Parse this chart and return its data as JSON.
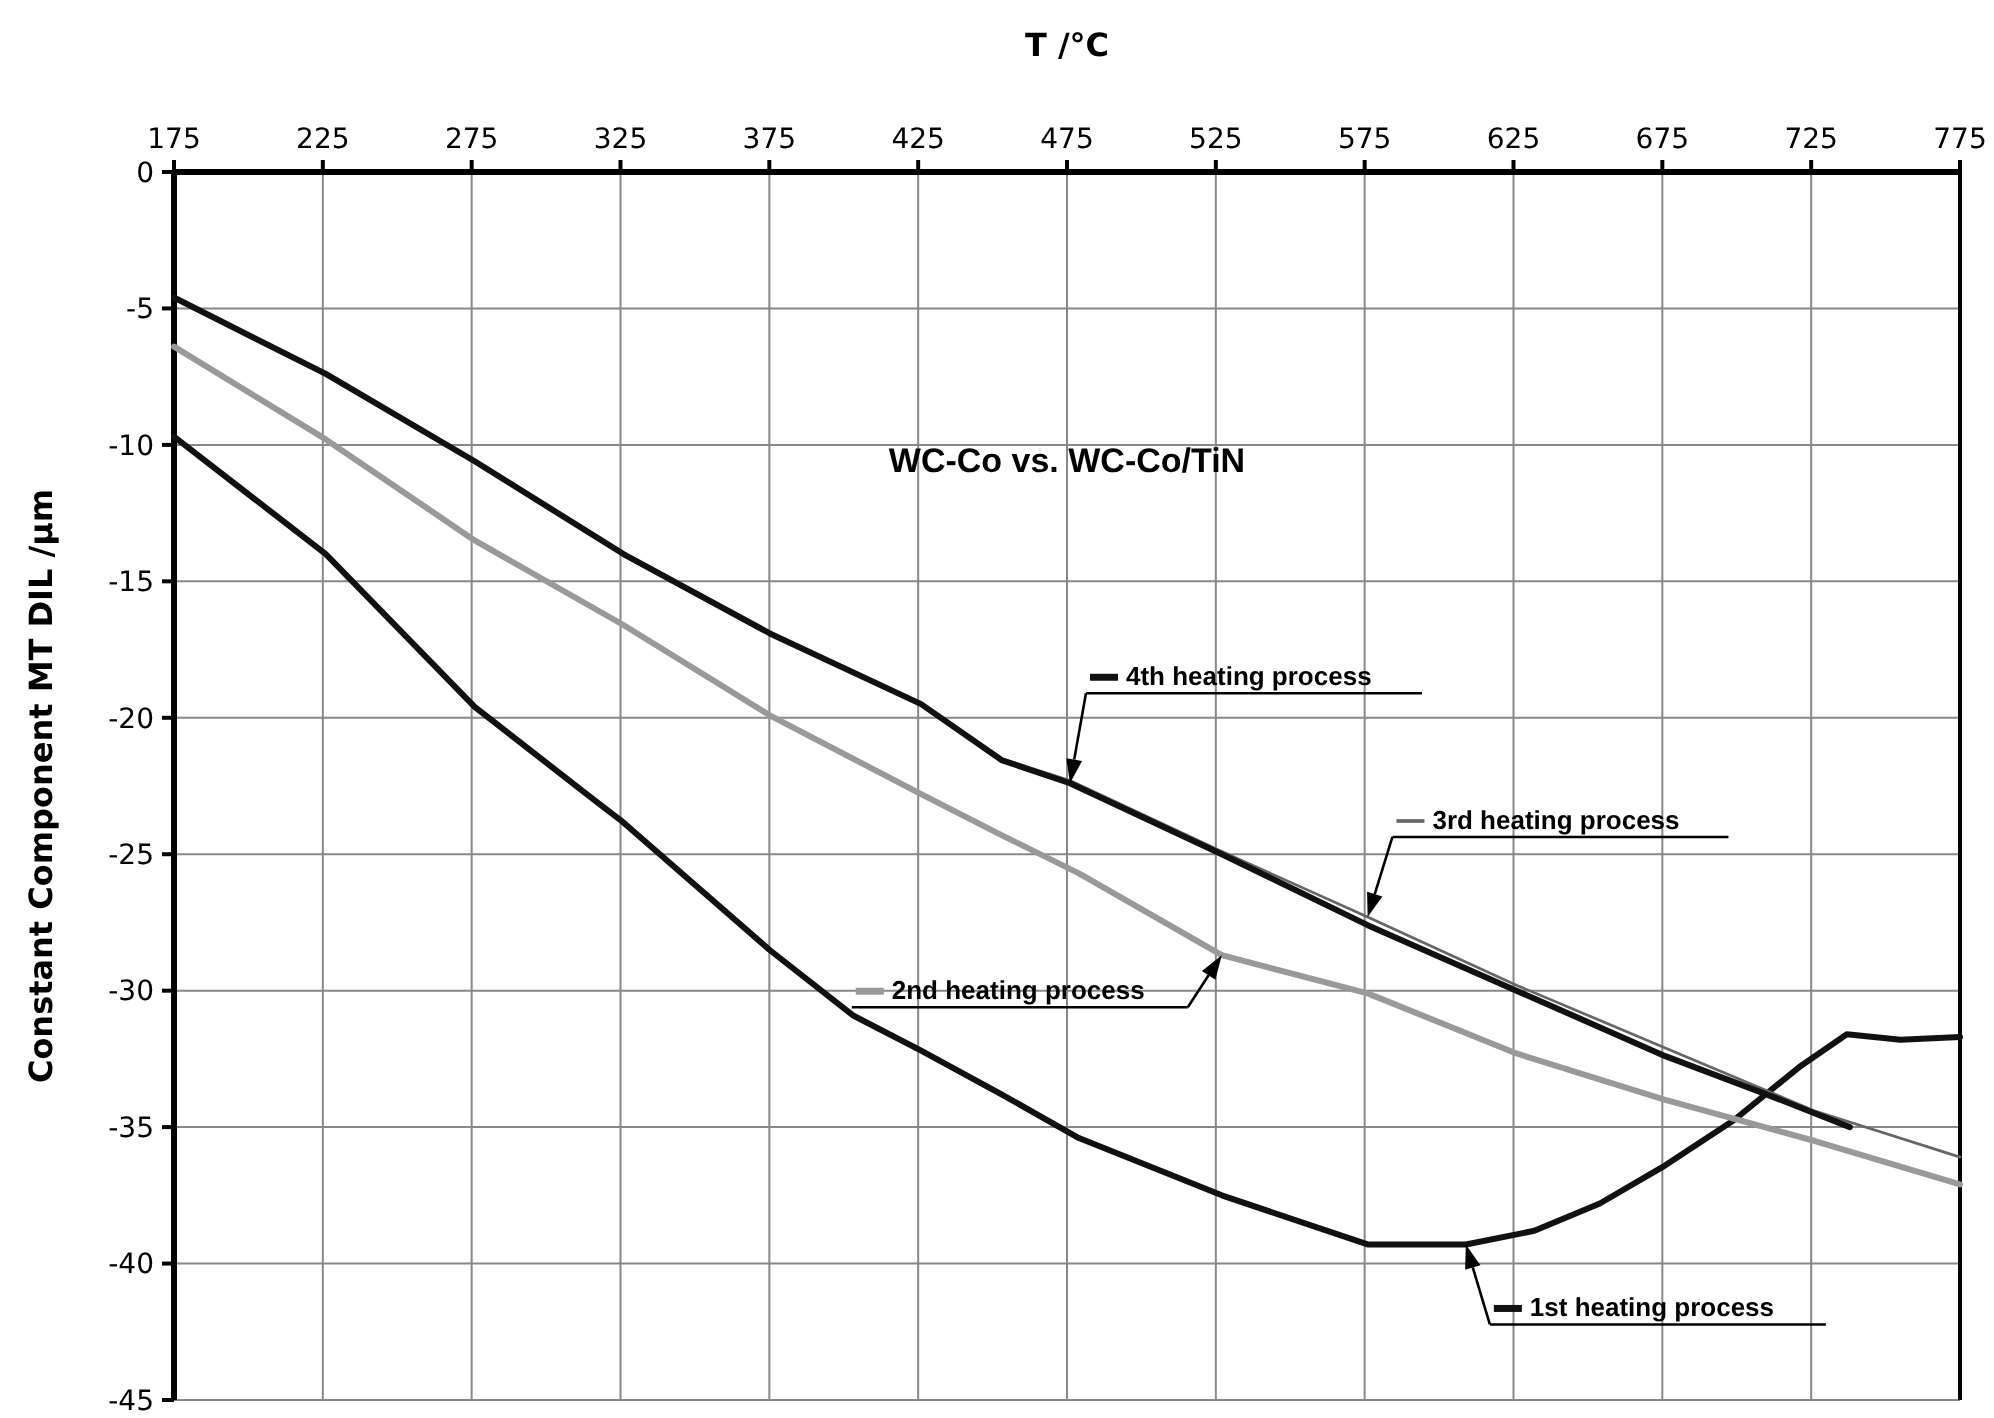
{
  "chart_data": {
    "type": "line",
    "title": "WC-Co vs. WC-Co/TiN",
    "xlabel": "T /°C",
    "ylabel": "Constant Component MT DIL /μm",
    "xlim": [
      175,
      775
    ],
    "xticks": [
      175,
      225,
      275,
      325,
      375,
      425,
      475,
      525,
      575,
      625,
      675,
      725,
      775
    ],
    "ylim": [
      -45,
      0
    ],
    "yticks": [
      0,
      -5,
      -10,
      -15,
      -20,
      -25,
      -30,
      -35,
      -40,
      -45
    ],
    "grid": true,
    "legend": "bottom right",
    "marker": "none",
    "line_style": "solid",
    "series": [
      {
        "name": "1st heating process",
        "color": "#111111",
        "x": [
          175,
          226,
          276,
          316,
          325,
          375,
          403,
          426,
          453,
          479,
          527,
          576,
          609,
          632,
          654,
          676,
          699,
          721,
          737,
          755,
          775
        ],
        "values": [
          -9.7,
          -14.0,
          -19.6,
          -23.0,
          -23.75,
          -28.5,
          -30.9,
          -32.2,
          -33.8,
          -35.4,
          -37.5,
          -39.3,
          -39.3,
          -38.8,
          -37.8,
          -36.4,
          -34.75,
          -32.8,
          -31.6,
          -31.8,
          -31.7
        ]
      },
      {
        "name": "2nd heating process",
        "color": "#999999",
        "x": [
          175,
          226,
          276,
          326,
          375,
          426,
          453,
          479,
          527,
          576,
          626,
          676,
          726,
          775
        ],
        "values": [
          -6.4,
          -9.8,
          -13.5,
          -16.6,
          -19.9,
          -22.8,
          -24.3,
          -25.7,
          -28.7,
          -30.1,
          -32.3,
          -34.0,
          -35.5,
          -37.1
        ]
      },
      {
        "name": "3rd heating process",
        "color": "#666666",
        "x": [
          175,
          226,
          276,
          326,
          375,
          426,
          453,
          476,
          527,
          576,
          626,
          676,
          726,
          775
        ],
        "values": [
          -4.6,
          -7.4,
          -10.6,
          -14.0,
          -16.9,
          -19.5,
          -21.5,
          -22.3,
          -24.9,
          -27.3,
          -29.8,
          -32.1,
          -34.4,
          -36.1
        ]
      },
      {
        "name": "4th heating process",
        "color": "#111111",
        "x": [
          175,
          226,
          276,
          326,
          375,
          426,
          453,
          476,
          527,
          576,
          626,
          676,
          710,
          738
        ],
        "values": [
          -4.6,
          -7.4,
          -10.6,
          -14.0,
          -16.9,
          -19.5,
          -21.55,
          -22.4,
          -25.0,
          -27.6,
          -30.0,
          -32.4,
          -33.8,
          -35.0
        ]
      }
    ]
  }
}
